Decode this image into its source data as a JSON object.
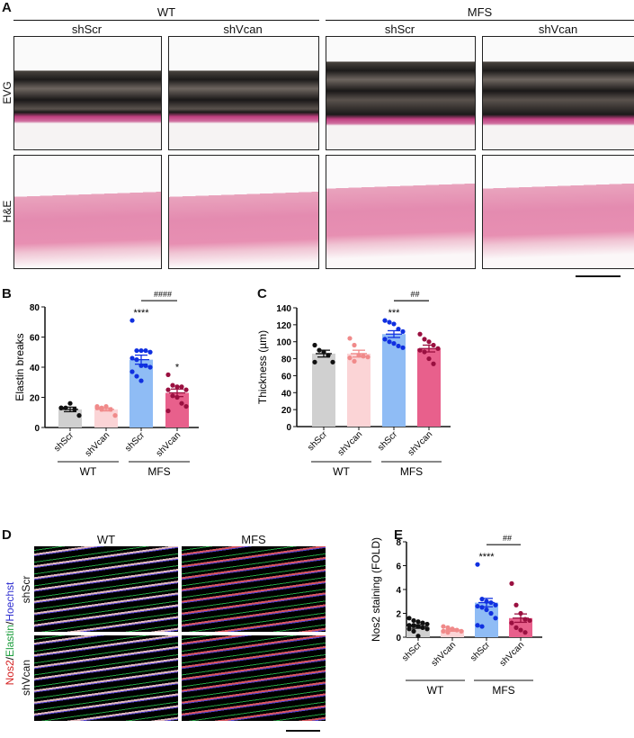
{
  "panelA": {
    "label": "A",
    "groups": [
      "WT",
      "MFS"
    ],
    "columns": [
      "shScr",
      "shVcan",
      "shScr",
      "shVcan"
    ],
    "rows": [
      "EVG",
      "H&E"
    ]
  },
  "panelD": {
    "label": "D",
    "columns": [
      "WT",
      "MFS"
    ],
    "rows": [
      "shScr",
      "shVcan"
    ],
    "stain": {
      "nos2": "Nos2",
      "elastin": "Elastin",
      "hoechst": "Hoechst",
      "sep": "/"
    },
    "colors": {
      "nos2": "#d42020",
      "elastin": "#20a040",
      "hoechst": "#3030d0"
    }
  },
  "colors": {
    "wt_shScr": "#d0d0d0",
    "wt_shVcan": "#fbd4d6",
    "mfs_shScr": "#8fbcf5",
    "mfs_shVcan": "#e8608c",
    "dots": [
      "#111111",
      "#f08a8a",
      "#1030e0",
      "#9a1040"
    ]
  },
  "chart_data": [
    {
      "panel": "B",
      "type": "bar",
      "ylabel": "Elastin breaks",
      "ylim": [
        0,
        80
      ],
      "yticks": [
        0,
        20,
        40,
        60,
        80
      ],
      "categories": [
        "shScr",
        "shVcan",
        "shScr",
        "shVcan"
      ],
      "groups": [
        {
          "name": "WT",
          "span": [
            0,
            1
          ]
        },
        {
          "name": "MFS",
          "span": [
            2,
            3
          ]
        }
      ],
      "means": [
        12,
        12,
        45,
        23
      ],
      "sem": [
        1.5,
        1,
        3,
        2.5
      ],
      "points": [
        [
          13,
          13,
          16,
          12,
          8,
          13
        ],
        [
          13,
          13,
          14,
          12,
          8,
          14,
          12
        ],
        [
          71,
          51,
          51,
          51,
          50,
          46,
          45,
          41,
          41,
          40,
          37,
          34,
          31
        ],
        [
          35,
          28,
          27,
          27,
          25,
          25,
          21,
          20,
          16,
          14,
          11
        ]
      ],
      "annotations": [
        {
          "bar": 2,
          "text": "****"
        },
        {
          "bar": 3,
          "text": "*"
        }
      ],
      "comparison": {
        "bars": [
          2,
          3
        ],
        "text": "####"
      }
    },
    {
      "panel": "C",
      "type": "bar",
      "ylabel": "Thickness (µm)",
      "ylim": [
        0,
        140
      ],
      "yticks": [
        0,
        20,
        40,
        60,
        80,
        100,
        120,
        140
      ],
      "categories": [
        "shScr",
        "shVcan",
        "shScr",
        "shVcan"
      ],
      "groups": [
        {
          "name": "WT",
          "span": [
            0,
            1
          ]
        },
        {
          "name": "MFS",
          "span": [
            2,
            3
          ]
        }
      ],
      "means": [
        86,
        86,
        109,
        92
      ],
      "sem": [
        4,
        4,
        4,
        4
      ],
      "points": [
        [
          96,
          90,
          88,
          84,
          76,
          76
        ],
        [
          104,
          96,
          84,
          83,
          82,
          81,
          77
        ],
        [
          125,
          123,
          121,
          115,
          112,
          103,
          100,
          98,
          95,
          93
        ],
        [
          109,
          103,
          100,
          96,
          92,
          90,
          88,
          80,
          74
        ]
      ],
      "annotations": [
        {
          "bar": 2,
          "text": "***"
        }
      ],
      "comparison": {
        "bars": [
          2,
          3
        ],
        "text": "##"
      }
    },
    {
      "panel": "E",
      "type": "bar",
      "ylabel": "Nos2 staining  (FOLD)",
      "ylim": [
        0,
        8
      ],
      "yticks": [
        0,
        2,
        4,
        6,
        8
      ],
      "categories": [
        "shScr",
        "shVcan",
        "shScr",
        "shVcan"
      ],
      "groups": [
        {
          "name": "WT",
          "span": [
            0,
            1
          ]
        },
        {
          "name": "MFS",
          "span": [
            2,
            3
          ]
        }
      ],
      "means": [
        0.9,
        0.6,
        2.9,
        1.6
      ],
      "sem": [
        0.15,
        0.1,
        0.35,
        0.35
      ],
      "points": [
        [
          1.6,
          1.4,
          1.3,
          1.2,
          1.1,
          1.0,
          1.0,
          0.9,
          0.8,
          0.7,
          0.7,
          0.5,
          0.1
        ],
        [
          0.9,
          0.8,
          0.7,
          0.6,
          0.5,
          0.5,
          0.4
        ],
        [
          6.1,
          3.2,
          3.0,
          2.9,
          2.7,
          2.6,
          2.5,
          2.3,
          2.0,
          1.6,
          1.0,
          0.9
        ],
        [
          4.5,
          2.7,
          2.0,
          1.5,
          1.4,
          1.2,
          0.8,
          0.6,
          0.4
        ]
      ],
      "annotations": [
        {
          "bar": 2,
          "text": "****"
        }
      ],
      "comparison": {
        "bars": [
          2,
          3
        ],
        "text": "##"
      }
    }
  ]
}
